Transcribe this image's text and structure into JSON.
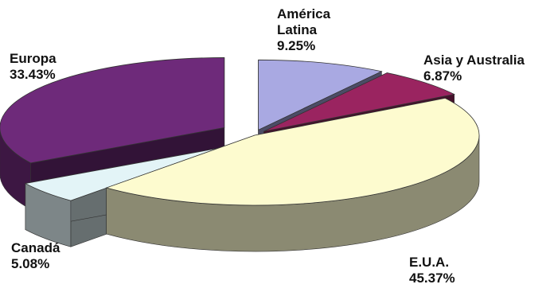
{
  "chart_data": {
    "type": "pie",
    "style": "3d-exploded",
    "title": "",
    "slices": [
      {
        "label_lines": [
          "América",
          "Latina"
        ],
        "value_label": "9.25%",
        "value": 9.25,
        "color": "#A9A9E2"
      },
      {
        "label_lines": [
          "Asia y Australia"
        ],
        "value_label": "6.87%",
        "value": 6.87,
        "color": "#9A2460"
      },
      {
        "label_lines": [
          "E.U.A."
        ],
        "value_label": "45.37%",
        "value": 45.37,
        "color": "#FDFBCF"
      },
      {
        "label_lines": [
          "Canadá"
        ],
        "value_label": "5.08%",
        "value": 5.08,
        "color": "#E3F4F7"
      },
      {
        "label_lines": [
          "Europa"
        ],
        "value_label": "33.43%",
        "value": 33.43,
        "color": "#6E2A7A"
      }
    ]
  }
}
